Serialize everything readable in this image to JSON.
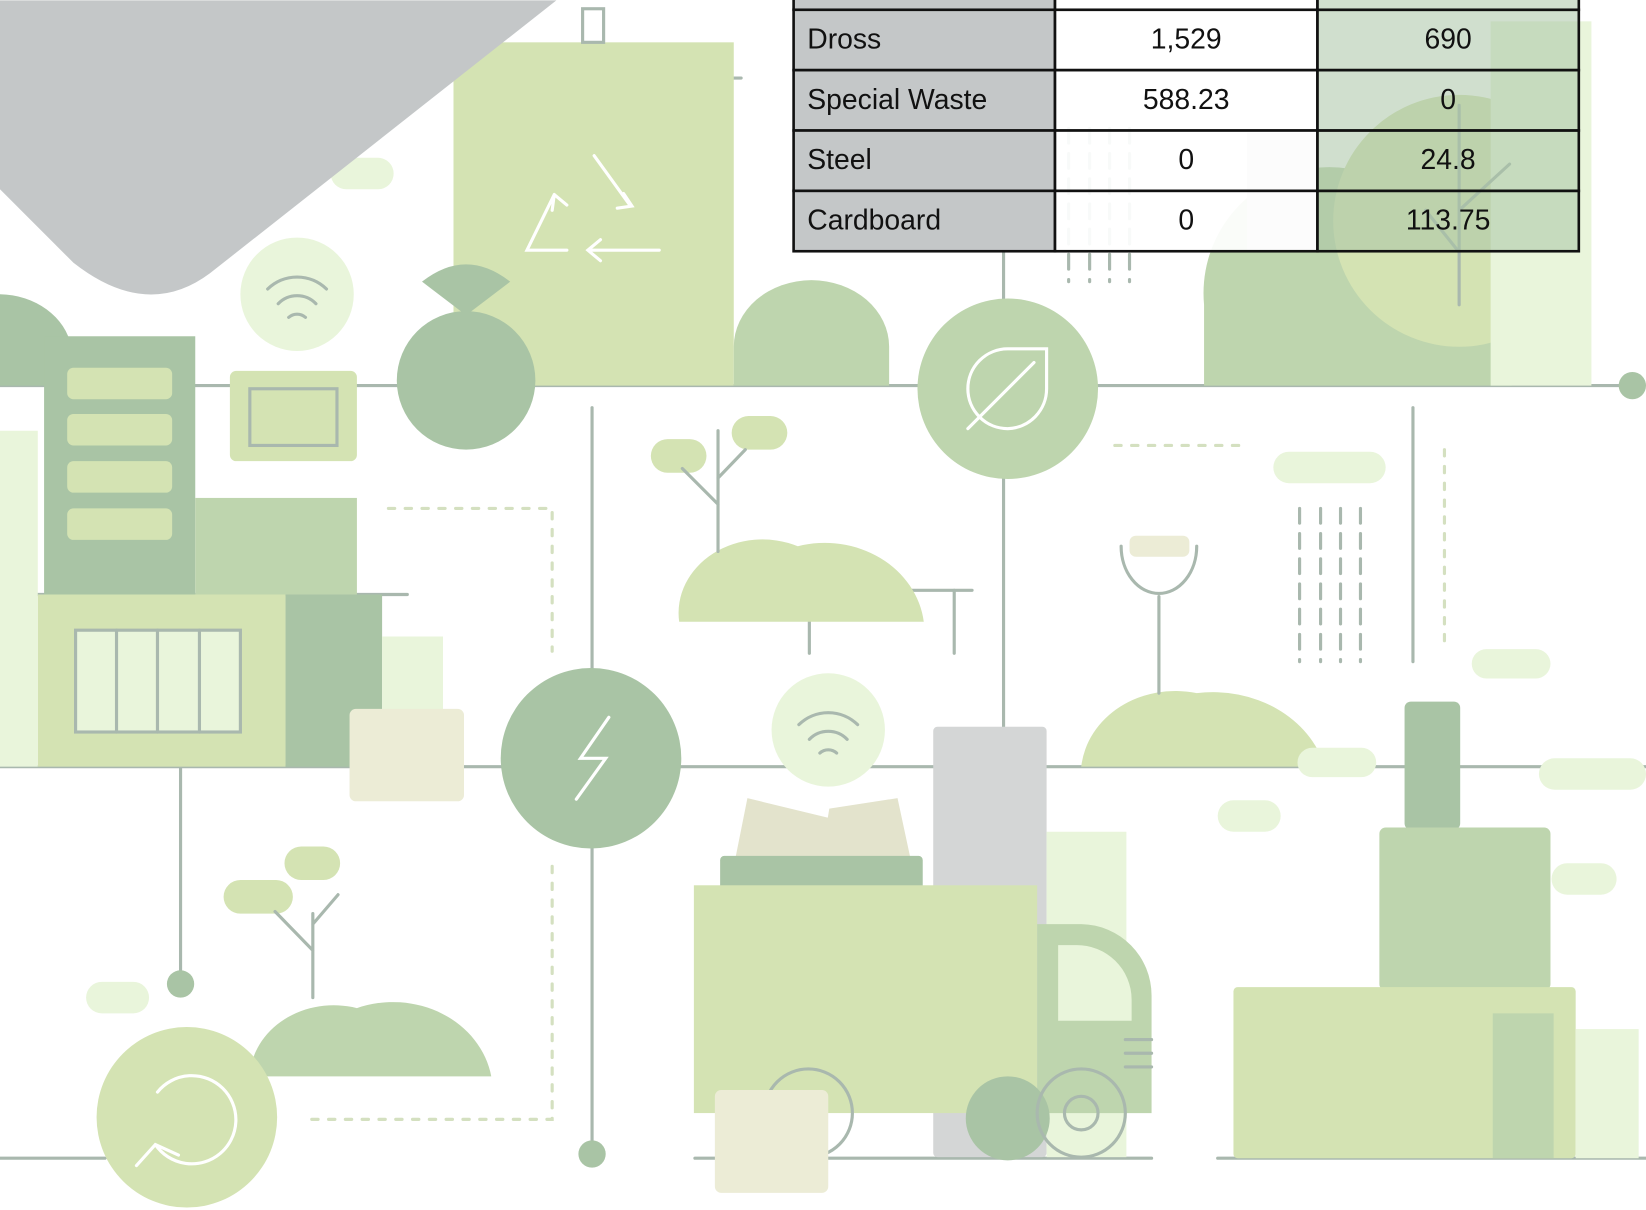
{
  "table": {
    "rows": [
      [
        "Dross",
        "1,529",
        "690"
      ],
      [
        "Special Waste",
        "588.23",
        "0"
      ],
      [
        "Steel",
        "0",
        "24.8"
      ],
      [
        "Cardboard",
        "0",
        "113.75"
      ]
    ]
  }
}
